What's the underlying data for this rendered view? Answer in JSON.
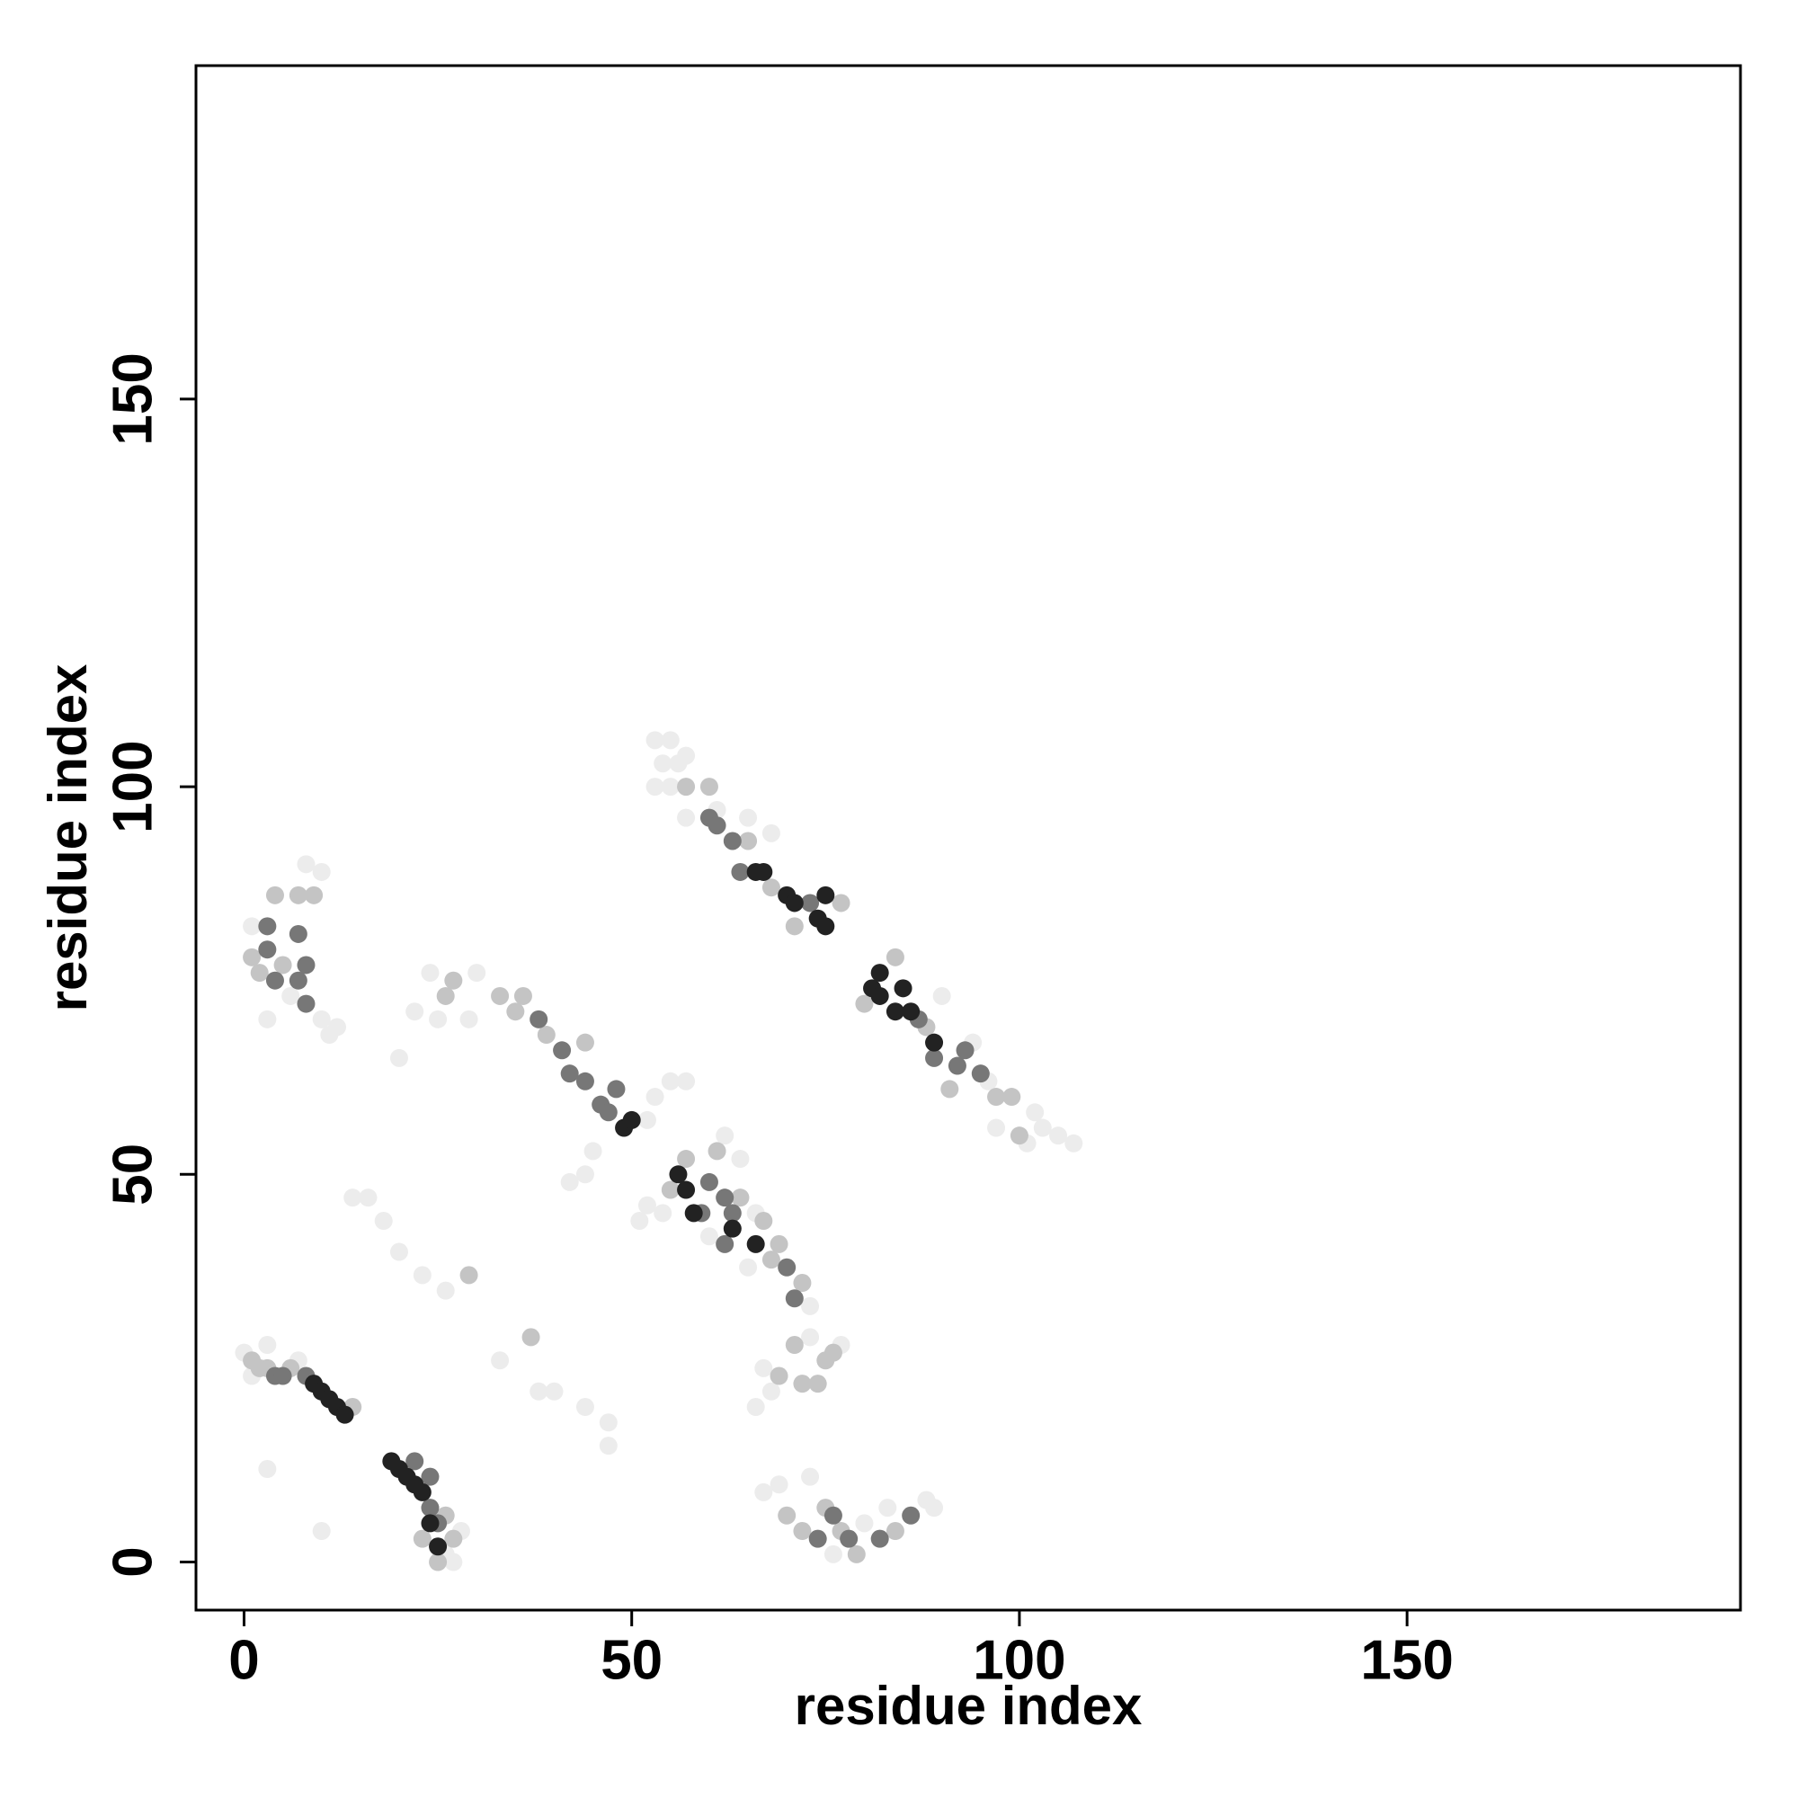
{
  "chart_data": {
    "type": "scatter",
    "x_label": "residue index",
    "y_label": "residue index",
    "xlim": [
      -6.2,
      193
    ],
    "ylim": [
      -6.2,
      193
    ],
    "xticks": [
      0,
      50,
      100,
      150
    ],
    "yticks": [
      0,
      50,
      100,
      150
    ],
    "series": [
      {
        "color": "#ececec",
        "x": [
          0,
          1,
          3,
          7,
          26,
          28,
          27,
          53,
          55,
          54,
          56,
          57,
          55,
          57,
          53,
          65,
          68,
          61,
          97,
          101,
          103,
          105,
          107,
          102,
          96,
          94,
          90,
          1,
          6,
          10,
          11,
          12,
          8,
          10,
          3,
          24,
          25,
          22,
          29,
          30,
          20,
          45,
          44,
          42,
          53,
          55,
          57,
          52,
          51,
          52,
          54,
          60,
          62,
          64,
          65,
          73,
          66,
          67,
          69,
          73,
          80,
          83,
          88,
          89,
          76,
          68,
          77,
          73,
          67,
          33,
          26,
          18,
          16,
          14,
          20,
          23,
          38,
          40,
          44,
          47,
          47,
          3,
          10,
          66
        ],
        "values": [
          27,
          24,
          28,
          26,
          1,
          4,
          0,
          106,
          106,
          103,
          103,
          104,
          100,
          96,
          100,
          96,
          94,
          97,
          56,
          54,
          56,
          55,
          54,
          58,
          62,
          67,
          73,
          82,
          73,
          70,
          68,
          69,
          90,
          89,
          70,
          76,
          70,
          71,
          70,
          76,
          65,
          53,
          50,
          49,
          60,
          62,
          62,
          57,
          44,
          46,
          45,
          42,
          55,
          52,
          38,
          33,
          45,
          9,
          10,
          11,
          5,
          7,
          8,
          7,
          1,
          22,
          28,
          29,
          25,
          26,
          35,
          44,
          47,
          47,
          40,
          37,
          22,
          22,
          20,
          18,
          15,
          12,
          4,
          20
        ]
      },
      {
        "color": "#c4c4c4",
        "x": [
          1,
          2,
          3,
          6,
          14,
          23,
          26,
          25,
          27,
          60,
          57,
          65,
          68,
          71,
          77,
          88,
          97,
          99,
          91,
          80,
          84,
          100,
          1,
          2,
          5,
          7,
          9,
          4,
          35,
          33,
          26,
          27,
          44,
          39,
          36,
          55,
          57,
          61,
          64,
          67,
          68,
          72,
          69,
          70,
          72,
          75,
          77,
          84,
          79,
          69,
          72,
          75,
          76,
          74,
          71,
          37,
          29
        ],
        "values": [
          26,
          25,
          25,
          25,
          20,
          3,
          6,
          0,
          3,
          100,
          100,
          93,
          87,
          82,
          85,
          69,
          60,
          60,
          61,
          72,
          78,
          55,
          78,
          76,
          77,
          86,
          86,
          86,
          71,
          73,
          73,
          75,
          67,
          68,
          73,
          48,
          52,
          53,
          47,
          44,
          39,
          36,
          41,
          6,
          4,
          7,
          4,
          4,
          1,
          24,
          23,
          26,
          27,
          23,
          28,
          29,
          37
        ]
      },
      {
        "color": "#777777",
        "x": [
          4,
          5,
          8,
          22,
          24,
          24,
          25,
          63,
          60,
          64,
          61,
          73,
          92,
          89,
          95,
          93,
          87,
          3,
          4,
          3,
          7,
          7,
          8,
          8,
          44,
          46,
          48,
          47,
          41,
          38,
          42,
          59,
          62,
          60,
          63,
          62,
          70,
          71,
          74,
          78,
          82,
          86,
          76
        ],
        "values": [
          24,
          24,
          24,
          13,
          11,
          7,
          5,
          93,
          96,
          89,
          95,
          85,
          64,
          65,
          63,
          66,
          70,
          82,
          75,
          79,
          81,
          75,
          72,
          77,
          62,
          59,
          61,
          58,
          66,
          70,
          63,
          45,
          47,
          49,
          45,
          41,
          38,
          34,
          3,
          3,
          3,
          6,
          6
        ]
      },
      {
        "color": "#222222",
        "x": [
          9,
          10,
          11,
          12,
          13,
          19,
          20,
          21,
          22,
          23,
          24,
          25,
          66,
          67,
          70,
          71,
          74,
          75,
          75,
          81,
          82,
          85,
          86,
          89,
          84,
          82,
          49,
          50,
          56,
          57,
          58,
          63,
          66
        ],
        "values": [
          23,
          22,
          21,
          20,
          19,
          13,
          12,
          11,
          10,
          9,
          5,
          2,
          89,
          89,
          86,
          85,
          83,
          82,
          86,
          74,
          73,
          74,
          71,
          67,
          71,
          76,
          56,
          57,
          50,
          48,
          45,
          43,
          41
        ]
      }
    ]
  }
}
